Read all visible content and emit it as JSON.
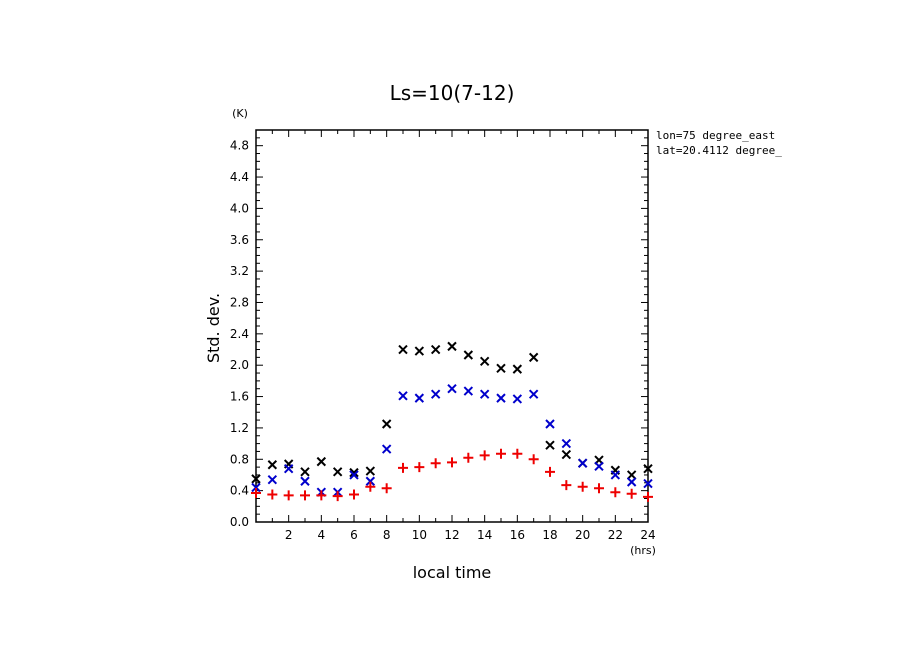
{
  "chart_data": {
    "type": "scatter",
    "title": "Ls=10(7-12)",
    "xlabel": "local time",
    "ylabel": "Std. dev.",
    "x_unit": "(hrs)",
    "y_unit": "(K)",
    "xlim": [
      0,
      24
    ],
    "ylim": [
      0,
      5.0
    ],
    "xticks": [
      2,
      4,
      6,
      8,
      10,
      12,
      14,
      16,
      18,
      20,
      22,
      24
    ],
    "yticks": [
      0.0,
      0.4,
      0.8,
      1.2,
      1.6,
      2.0,
      2.4,
      2.8,
      3.2,
      3.6,
      4.0,
      4.4,
      4.8
    ],
    "annotations": [
      "lon=75 degree_east",
      "lat=20.4112 degree_"
    ],
    "grid": false,
    "x": [
      0,
      1,
      2,
      3,
      4,
      5,
      6,
      7,
      8,
      9,
      10,
      11,
      12,
      13,
      14,
      15,
      16,
      17,
      18,
      19,
      20,
      21,
      22,
      23,
      24
    ],
    "series": [
      {
        "marker": "x",
        "color": "#000000",
        "values": [
          0.55,
          0.73,
          0.74,
          0.64,
          0.77,
          0.64,
          0.63,
          0.65,
          1.25,
          2.2,
          2.18,
          2.2,
          2.24,
          2.13,
          2.05,
          1.96,
          1.95,
          2.1,
          0.98,
          0.86,
          0.75,
          0.79,
          0.66,
          0.6,
          0.68
        ]
      },
      {
        "marker": "x",
        "color": "#0000cc",
        "values": [
          0.44,
          0.54,
          0.68,
          0.52,
          0.38,
          0.38,
          0.6,
          0.52,
          0.93,
          1.61,
          1.58,
          1.63,
          1.7,
          1.67,
          1.63,
          1.58,
          1.57,
          1.63,
          1.25,
          1.0,
          0.75,
          0.71,
          0.6,
          0.51,
          0.49
        ]
      },
      {
        "marker": "+",
        "color": "#ee0000",
        "values": [
          0.37,
          0.35,
          0.34,
          0.34,
          0.34,
          0.33,
          0.35,
          0.45,
          0.43,
          0.69,
          0.7,
          0.75,
          0.76,
          0.82,
          0.85,
          0.87,
          0.87,
          0.8,
          0.64,
          0.47,
          0.45,
          0.43,
          0.38,
          0.36,
          0.32
        ]
      }
    ]
  }
}
